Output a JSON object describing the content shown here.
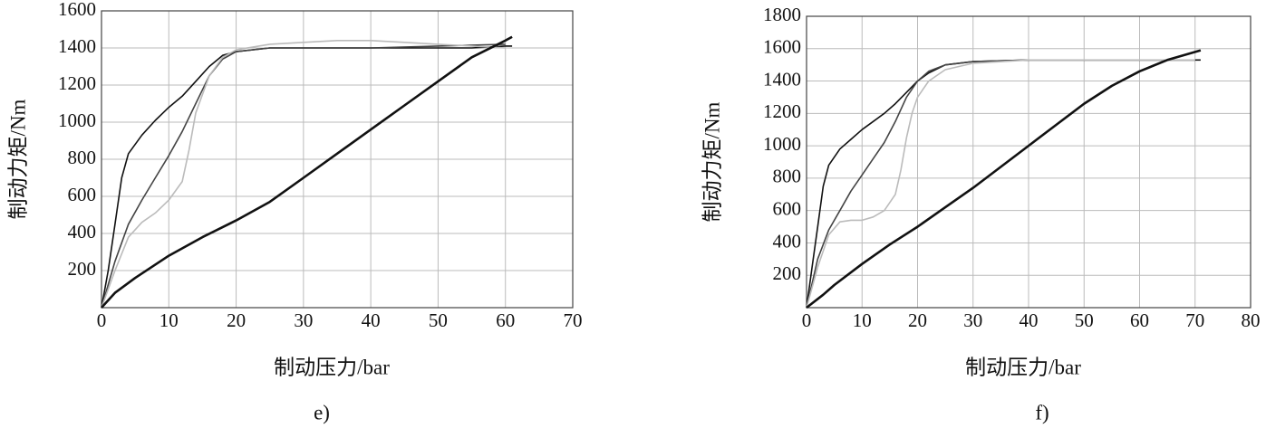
{
  "chart_data": [
    {
      "type": "line",
      "caption": "e)",
      "xlabel": "制动压力/bar",
      "ylabel": "制动力矩/Nm",
      "xlim": [
        0,
        70
      ],
      "xticks": [
        0,
        10,
        20,
        30,
        40,
        50,
        60,
        70
      ],
      "ylim": [
        0,
        1600
      ],
      "yticks": [
        200,
        400,
        600,
        800,
        1000,
        1200,
        1400,
        1600
      ],
      "grid": true,
      "series": [
        {
          "color": "#111111",
          "x": [
            0,
            1,
            2,
            3,
            4,
            6,
            8,
            10,
            12,
            14,
            16,
            18,
            20,
            25,
            30,
            40,
            50,
            55,
            60,
            61
          ],
          "values": [
            0,
            200,
            450,
            700,
            830,
            930,
            1010,
            1080,
            1140,
            1220,
            1300,
            1360,
            1380,
            1400,
            1400,
            1400,
            1400,
            1400,
            1410,
            1410
          ]
        },
        {
          "color": "#444444",
          "x": [
            0,
            2,
            4,
            6,
            8,
            10,
            12,
            14,
            16,
            18,
            20,
            25,
            30,
            40,
            50,
            60
          ],
          "values": [
            0,
            250,
            450,
            580,
            700,
            820,
            950,
            1100,
            1250,
            1340,
            1380,
            1400,
            1400,
            1400,
            1410,
            1420
          ]
        },
        {
          "color": "#bbbbbb",
          "x": [
            0,
            2,
            4,
            6,
            8,
            10,
            12,
            13,
            14,
            16,
            18,
            20,
            25,
            30,
            35,
            40,
            45,
            50,
            55,
            60
          ],
          "values": [
            0,
            200,
            380,
            460,
            510,
            580,
            680,
            850,
            1050,
            1250,
            1350,
            1390,
            1420,
            1430,
            1440,
            1440,
            1430,
            1420,
            1410,
            1400
          ]
        },
        {
          "color": "#111111",
          "x": [
            0,
            2,
            5,
            10,
            15,
            20,
            25,
            30,
            35,
            40,
            45,
            50,
            55,
            60,
            61
          ],
          "values": [
            0,
            80,
            160,
            280,
            380,
            470,
            570,
            700,
            830,
            960,
            1090,
            1220,
            1350,
            1440,
            1460
          ]
        }
      ]
    },
    {
      "type": "line",
      "caption": "f)",
      "xlabel": "制动压力/bar",
      "ylabel": "制动力矩/Nm",
      "xlim": [
        0,
        80
      ],
      "xticks": [
        0,
        10,
        20,
        30,
        40,
        50,
        60,
        70,
        80
      ],
      "ylim": [
        0,
        1800
      ],
      "yticks": [
        200,
        400,
        600,
        800,
        1000,
        1200,
        1400,
        1600,
        1800
      ],
      "grid": true,
      "series": [
        {
          "color": "#111111",
          "x": [
            0,
            1,
            2,
            3,
            4,
            6,
            8,
            10,
            12,
            14,
            16,
            18,
            20,
            22,
            25,
            30,
            40,
            50,
            60,
            70,
            71
          ],
          "values": [
            0,
            250,
            500,
            750,
            880,
            980,
            1040,
            1100,
            1150,
            1200,
            1260,
            1330,
            1400,
            1450,
            1500,
            1520,
            1530,
            1530,
            1530,
            1530,
            1530
          ]
        },
        {
          "color": "#444444",
          "x": [
            0,
            2,
            4,
            6,
            8,
            10,
            12,
            14,
            16,
            18,
            20,
            22,
            25,
            30,
            40,
            60,
            70
          ],
          "values": [
            0,
            300,
            480,
            600,
            720,
            820,
            920,
            1020,
            1150,
            1300,
            1400,
            1460,
            1500,
            1520,
            1530,
            1530,
            1530
          ]
        },
        {
          "color": "#bbbbbb",
          "x": [
            0,
            2,
            4,
            6,
            8,
            10,
            12,
            14,
            16,
            17,
            18,
            19,
            20,
            22,
            25,
            30,
            40,
            60,
            70
          ],
          "values": [
            0,
            250,
            450,
            530,
            540,
            540,
            560,
            600,
            700,
            850,
            1050,
            1200,
            1300,
            1400,
            1470,
            1510,
            1530,
            1530,
            1530
          ]
        },
        {
          "color": "#111111",
          "x": [
            0,
            3,
            5,
            10,
            15,
            20,
            25,
            30,
            35,
            40,
            45,
            50,
            55,
            60,
            65,
            70,
            71
          ],
          "values": [
            0,
            80,
            140,
            270,
            390,
            500,
            620,
            740,
            870,
            1000,
            1130,
            1260,
            1370,
            1460,
            1530,
            1580,
            1590
          ]
        }
      ]
    }
  ]
}
